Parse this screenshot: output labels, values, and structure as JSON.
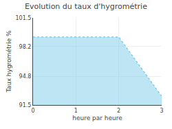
{
  "chart_data": {
    "type": "area",
    "title": "Evolution du taux d'hygrométrie",
    "xlabel": "heure par heure",
    "ylabel": "Taux hygrométrie %",
    "x": [
      0,
      2,
      2,
      3
    ],
    "values": [
      99.3,
      99.3,
      99.3,
      92.5
    ],
    "color": "#7eccea",
    "line_style": "dotted",
    "xlim": [
      0,
      3
    ],
    "xticks": [
      0,
      1,
      2,
      3
    ],
    "ylim": [
      91.5,
      101.5
    ],
    "yticks": [
      91.5,
      94.8,
      98.2,
      101.5
    ],
    "grid": true
  }
}
